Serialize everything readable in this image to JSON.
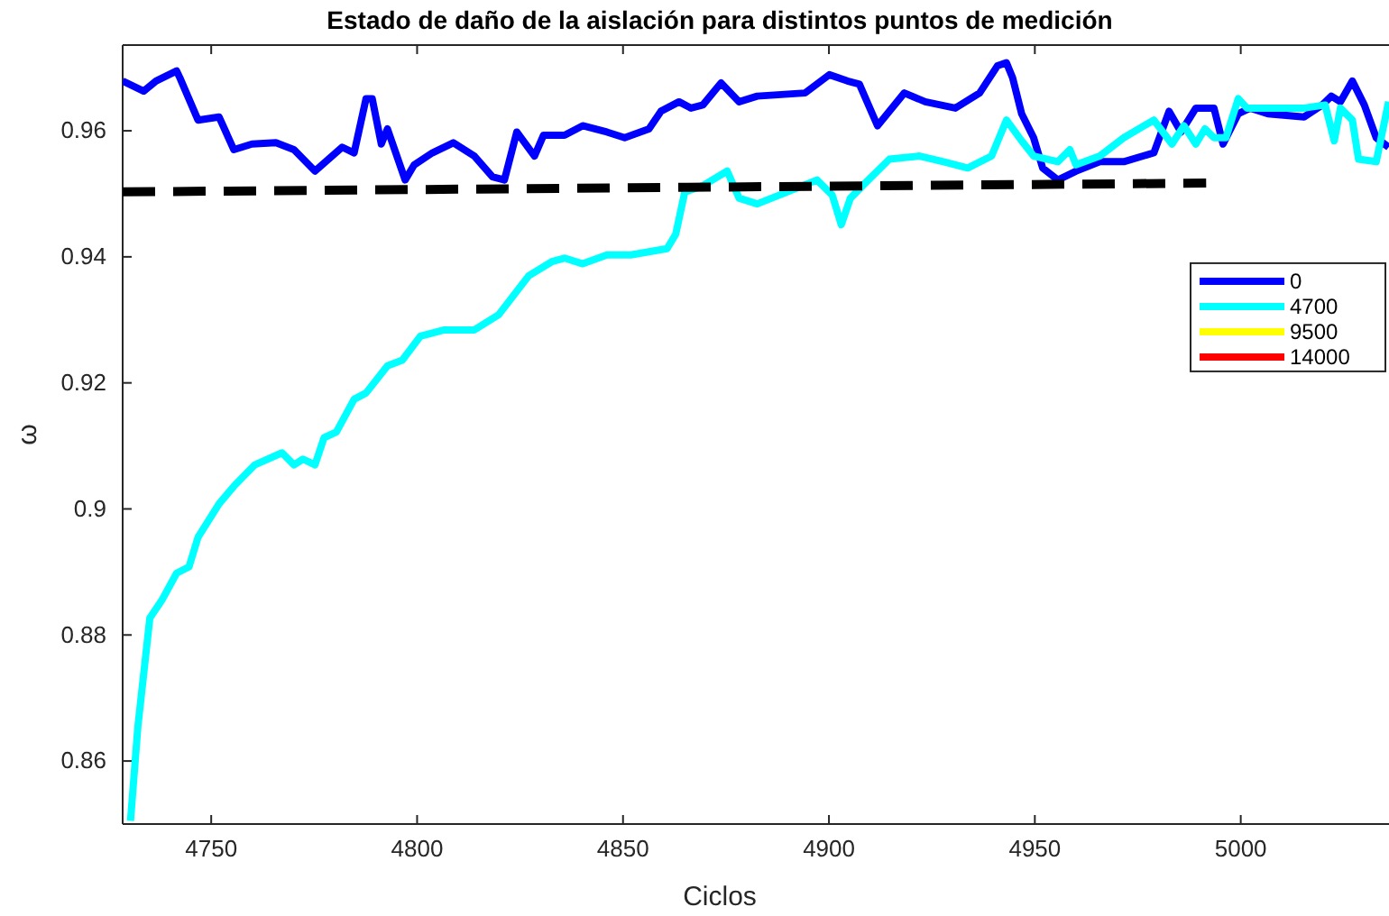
{
  "chart_data": {
    "type": "line",
    "title": "Estado de daño de la aislación para distintos puntos de medición",
    "xlabel": "Ciclos",
    "ylabel": "ω",
    "xlim": [
      4728.5,
      5036
    ],
    "ylim": [
      0.85,
      0.9736
    ],
    "xticks": [
      4750,
      4800,
      4850,
      4900,
      4950,
      5000
    ],
    "yticks": [
      0.86,
      0.88,
      0.9,
      0.92,
      0.94,
      0.96
    ],
    "grid": false,
    "legend": "right",
    "marker": "none",
    "series": [
      {
        "name": "0",
        "color": "#0000ff",
        "x": [
          4728.5,
          4733.6,
          4736.6,
          4741.6,
          4742.4,
          4746.8,
          4751.9,
          4755.5,
          4759.9,
          4765.7,
          4770.1,
          4775.2,
          4781.8,
          4784.7,
          4787.6,
          4789.1,
          4791.3,
          4792.8,
          4797.1,
          4799.3,
          4803.7,
          4808.8,
          4813.9,
          4818.3,
          4821.2,
          4824.2,
          4828.5,
          4830.7,
          4835.8,
          4840.2,
          4846.1,
          4850.4,
          4856.3,
          4859.2,
          4863.6,
          4866.5,
          4869.4,
          4873.8,
          4878.2,
          4882.6,
          4894.2,
          4900.1,
          4904.5,
          4907.4,
          4911.8,
          4918.3,
          4923.4,
          4930.7,
          4936.6,
          4940.9,
          4943.1,
          4944.6,
          4946.8,
          4949.7,
          4951.9,
          4955.6,
          4960.0,
          4965.8,
          4971.6,
          4978.9,
          4982.6,
          4985.5,
          4989.1,
          4993.5,
          4995.7,
          4999.4,
          5002.3,
          5006.6,
          5015.4,
          5019.8,
          5022.0,
          5024.2,
          5027.1,
          5030.0,
          5032.9,
          5035.9
        ],
        "values": [
          0.9679,
          0.9663,
          0.9679,
          0.9695,
          0.9684,
          0.9617,
          0.9622,
          0.957,
          0.9579,
          0.9581,
          0.957,
          0.9536,
          0.9574,
          0.9565,
          0.9651,
          0.9651,
          0.9579,
          0.9603,
          0.9522,
          0.9546,
          0.9565,
          0.9581,
          0.956,
          0.9527,
          0.9522,
          0.9598,
          0.956,
          0.9593,
          0.9593,
          0.9608,
          0.9598,
          0.9589,
          0.9603,
          0.9631,
          0.9646,
          0.9636,
          0.9641,
          0.9676,
          0.9646,
          0.9655,
          0.966,
          0.9689,
          0.9679,
          0.9674,
          0.9608,
          0.966,
          0.9646,
          0.9636,
          0.966,
          0.9703,
          0.9708,
          0.9684,
          0.9627,
          0.9589,
          0.9541,
          0.9522,
          0.9536,
          0.9551,
          0.9551,
          0.9565,
          0.9631,
          0.9598,
          0.9636,
          0.9636,
          0.9579,
          0.9627,
          0.9636,
          0.9627,
          0.9622,
          0.9641,
          0.9655,
          0.9646,
          0.9679,
          0.9641,
          0.9589,
          0.9574
        ]
      },
      {
        "name": "4700",
        "color": "#00ffff",
        "x": [
          4730.4,
          4732.2,
          4735.1,
          4738.0,
          4741.6,
          4744.6,
          4746.8,
          4751.9,
          4755.5,
          4760.6,
          4767.2,
          4770.1,
          4772.3,
          4775.2,
          4777.4,
          4780.4,
          4784.7,
          4787.6,
          4792.8,
          4796.4,
          4800.8,
          4806.6,
          4813.9,
          4819.8,
          4827.1,
          4832.9,
          4835.8,
          4840.2,
          4846.1,
          4851.9,
          4860.7,
          4862.8,
          4865.0,
          4869.4,
          4875.3,
          4878.2,
          4882.6,
          4889.9,
          4897.1,
          4900.8,
          4903.0,
          4905.2,
          4908.8,
          4914.7,
          4922.0,
          4927.8,
          4933.7,
          4939.5,
          4943.1,
          4946.8,
          4949.7,
          4955.6,
          4958.5,
          4960.0,
          4965.8,
          4971.6,
          4978.9,
          4983.3,
          4986.2,
          4989.1,
          4991.3,
          4993.5,
          4996.4,
          4999.4,
          5001.5,
          5006.6,
          5015.4,
          5020.5,
          5022.7,
          5024.2,
          5027.1,
          5028.6,
          5032.9,
          5035.9
        ],
        "values": [
          0.8505,
          0.8655,
          0.8827,
          0.8855,
          0.8898,
          0.8908,
          0.8955,
          0.9008,
          0.9036,
          0.907,
          0.9089,
          0.907,
          0.9079,
          0.907,
          0.9113,
          0.9122,
          0.9174,
          0.9184,
          0.9227,
          0.9236,
          0.9274,
          0.9284,
          0.9284,
          0.9308,
          0.937,
          0.9393,
          0.9398,
          0.9389,
          0.9403,
          0.9403,
          0.9413,
          0.9436,
          0.9503,
          0.9513,
          0.9536,
          0.9493,
          0.9484,
          0.9503,
          0.9522,
          0.9498,
          0.9451,
          0.9493,
          0.9517,
          0.9555,
          0.956,
          0.9551,
          0.9541,
          0.956,
          0.9617,
          0.9584,
          0.956,
          0.9551,
          0.957,
          0.9546,
          0.956,
          0.9589,
          0.9617,
          0.9579,
          0.9608,
          0.9579,
          0.9603,
          0.9589,
          0.9589,
          0.9651,
          0.9636,
          0.9636,
          0.9636,
          0.9641,
          0.9584,
          0.9636,
          0.9617,
          0.9555,
          0.9551,
          0.9646
        ]
      },
      {
        "name": "9500",
        "color": "#ffff00"
      },
      {
        "name": "14000",
        "color": "#ff0000"
      },
      {
        "color": "#000000",
        "line_style": "dashed",
        "x": [
          4728.5,
          4991.6
        ],
        "values": [
          0.9503,
          0.9517
        ]
      }
    ]
  }
}
